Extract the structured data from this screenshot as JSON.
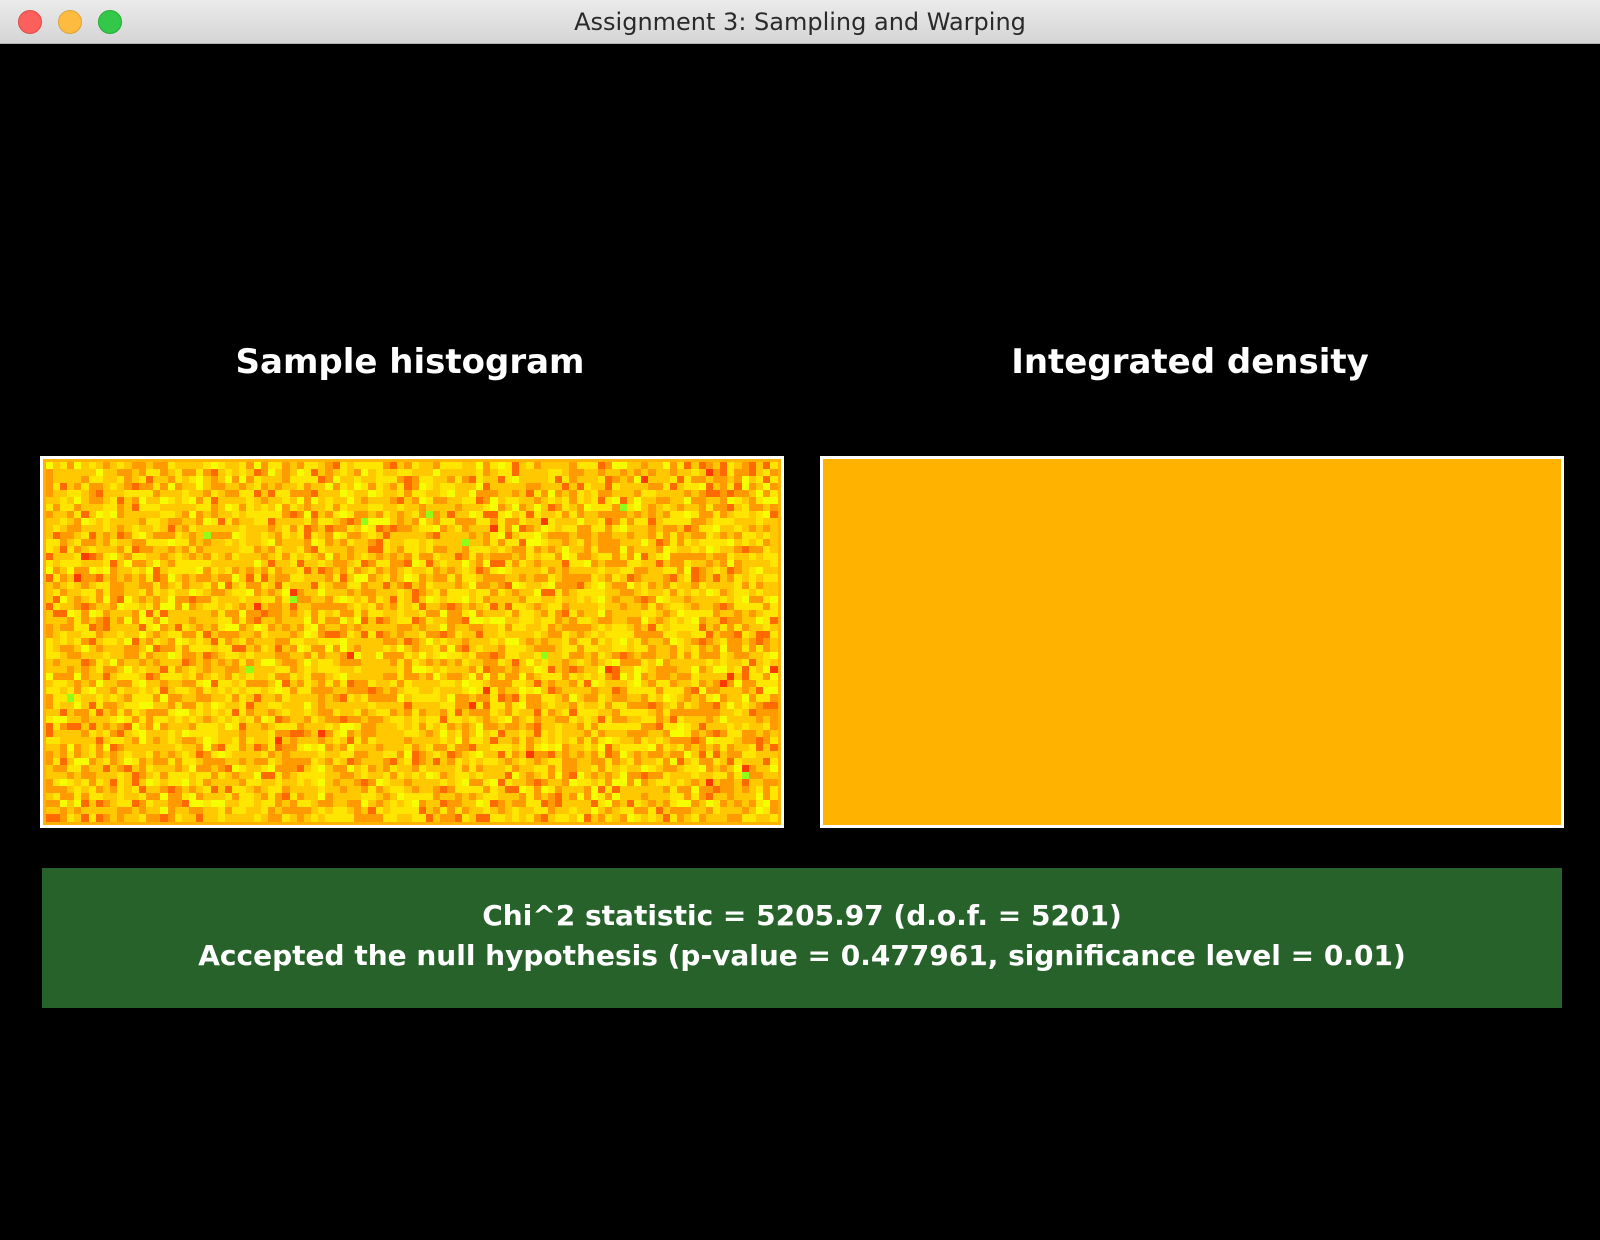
{
  "window": {
    "title": "Assignment 3: Sampling and Warping"
  },
  "panels": {
    "left_title": "Sample histogram",
    "right_title": "Integrated density"
  },
  "histogram": {
    "colormap": [
      "#ff3a00",
      "#ff6a00",
      "#ff9a00",
      "#ffc800",
      "#ffe600",
      "#f5ff00",
      "#8fff1a"
    ]
  },
  "density": {
    "color": "#ffb300"
  },
  "result": {
    "line1": "Chi^2 statistic = 5205.97 (d.o.f. = 5201)",
    "line2": "Accepted the null hypothesis (p-value = 0.477961, significance level = 0.01)",
    "background_color": "#27622b"
  }
}
